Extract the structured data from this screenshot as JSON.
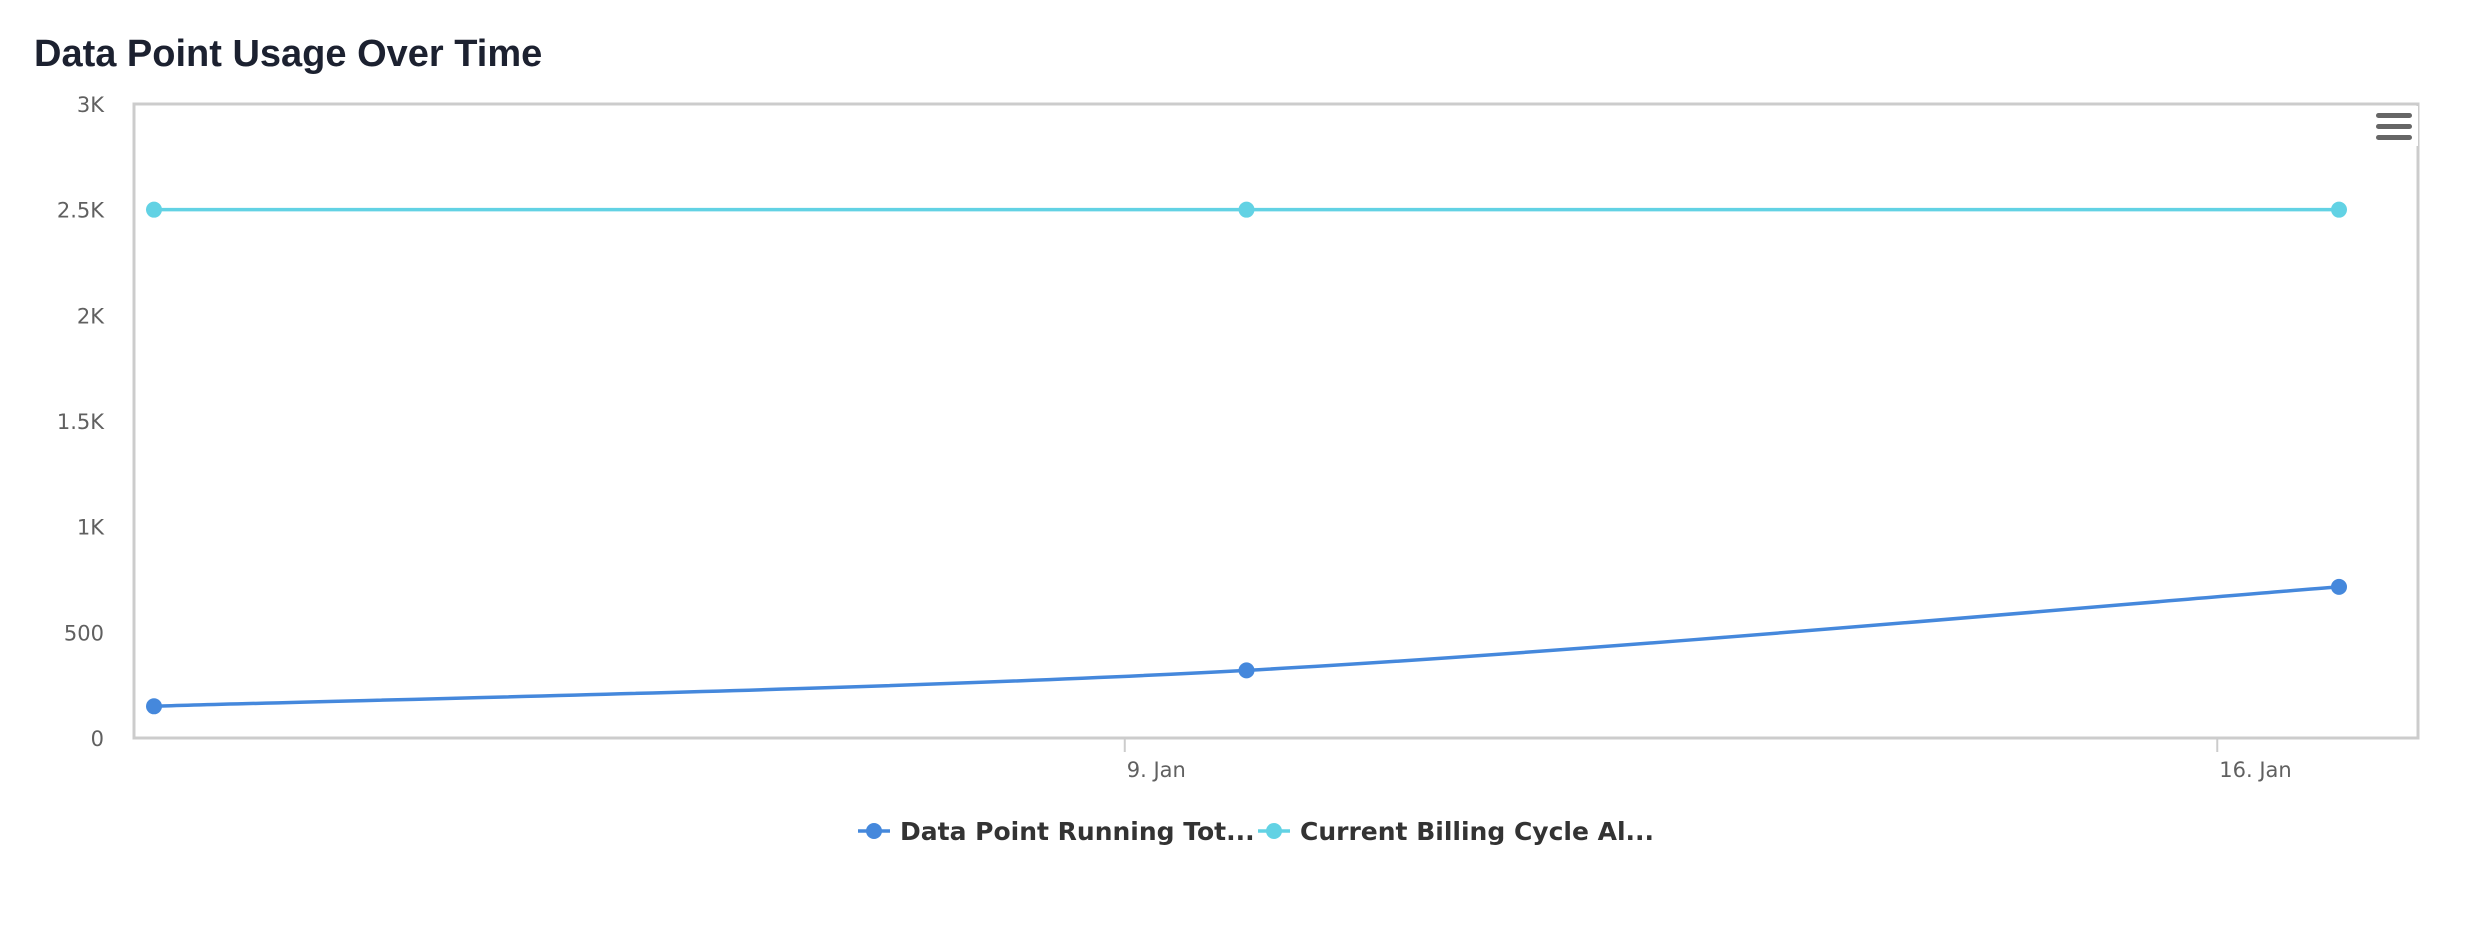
{
  "header": {
    "title": "Data Point Usage Over Time"
  },
  "menu": {
    "icon": "hamburger-menu-icon"
  },
  "chart_data": {
    "type": "line",
    "title": "Data Point Usage Over Time",
    "x_axis": {
      "type": "datetime",
      "tick_labels": [
        {
          "label": "9. Jan",
          "date": "2024-01-09"
        },
        {
          "label": "16. Jan",
          "date": "2024-01-16"
        }
      ]
    },
    "y_axis": {
      "min": 0,
      "max": 3000,
      "ticks": [
        0,
        500,
        1000,
        1500,
        2000,
        2500,
        3000
      ],
      "tick_labels": [
        "0",
        "500",
        "1K",
        "1.5K",
        "2K",
        "2.5K",
        "3K"
      ]
    },
    "grid": false,
    "legend": {
      "position": "bottom-center"
    },
    "series": [
      {
        "name": "Data Point Running Tot...",
        "color": "#4588dc",
        "smooth": true,
        "points": [
          {
            "date": "2024-01-02",
            "y": 150
          },
          {
            "date": "2024-01-09",
            "y": 320
          },
          {
            "date": "2024-01-16",
            "y": 715
          }
        ]
      },
      {
        "name": "Current Billing Cycle Al...",
        "color": "#62d2e4",
        "smooth": false,
        "points": [
          {
            "date": "2024-01-02",
            "y": 2500
          },
          {
            "date": "2024-01-09",
            "y": 2500
          },
          {
            "date": "2024-01-16",
            "y": 2500
          }
        ]
      }
    ]
  }
}
